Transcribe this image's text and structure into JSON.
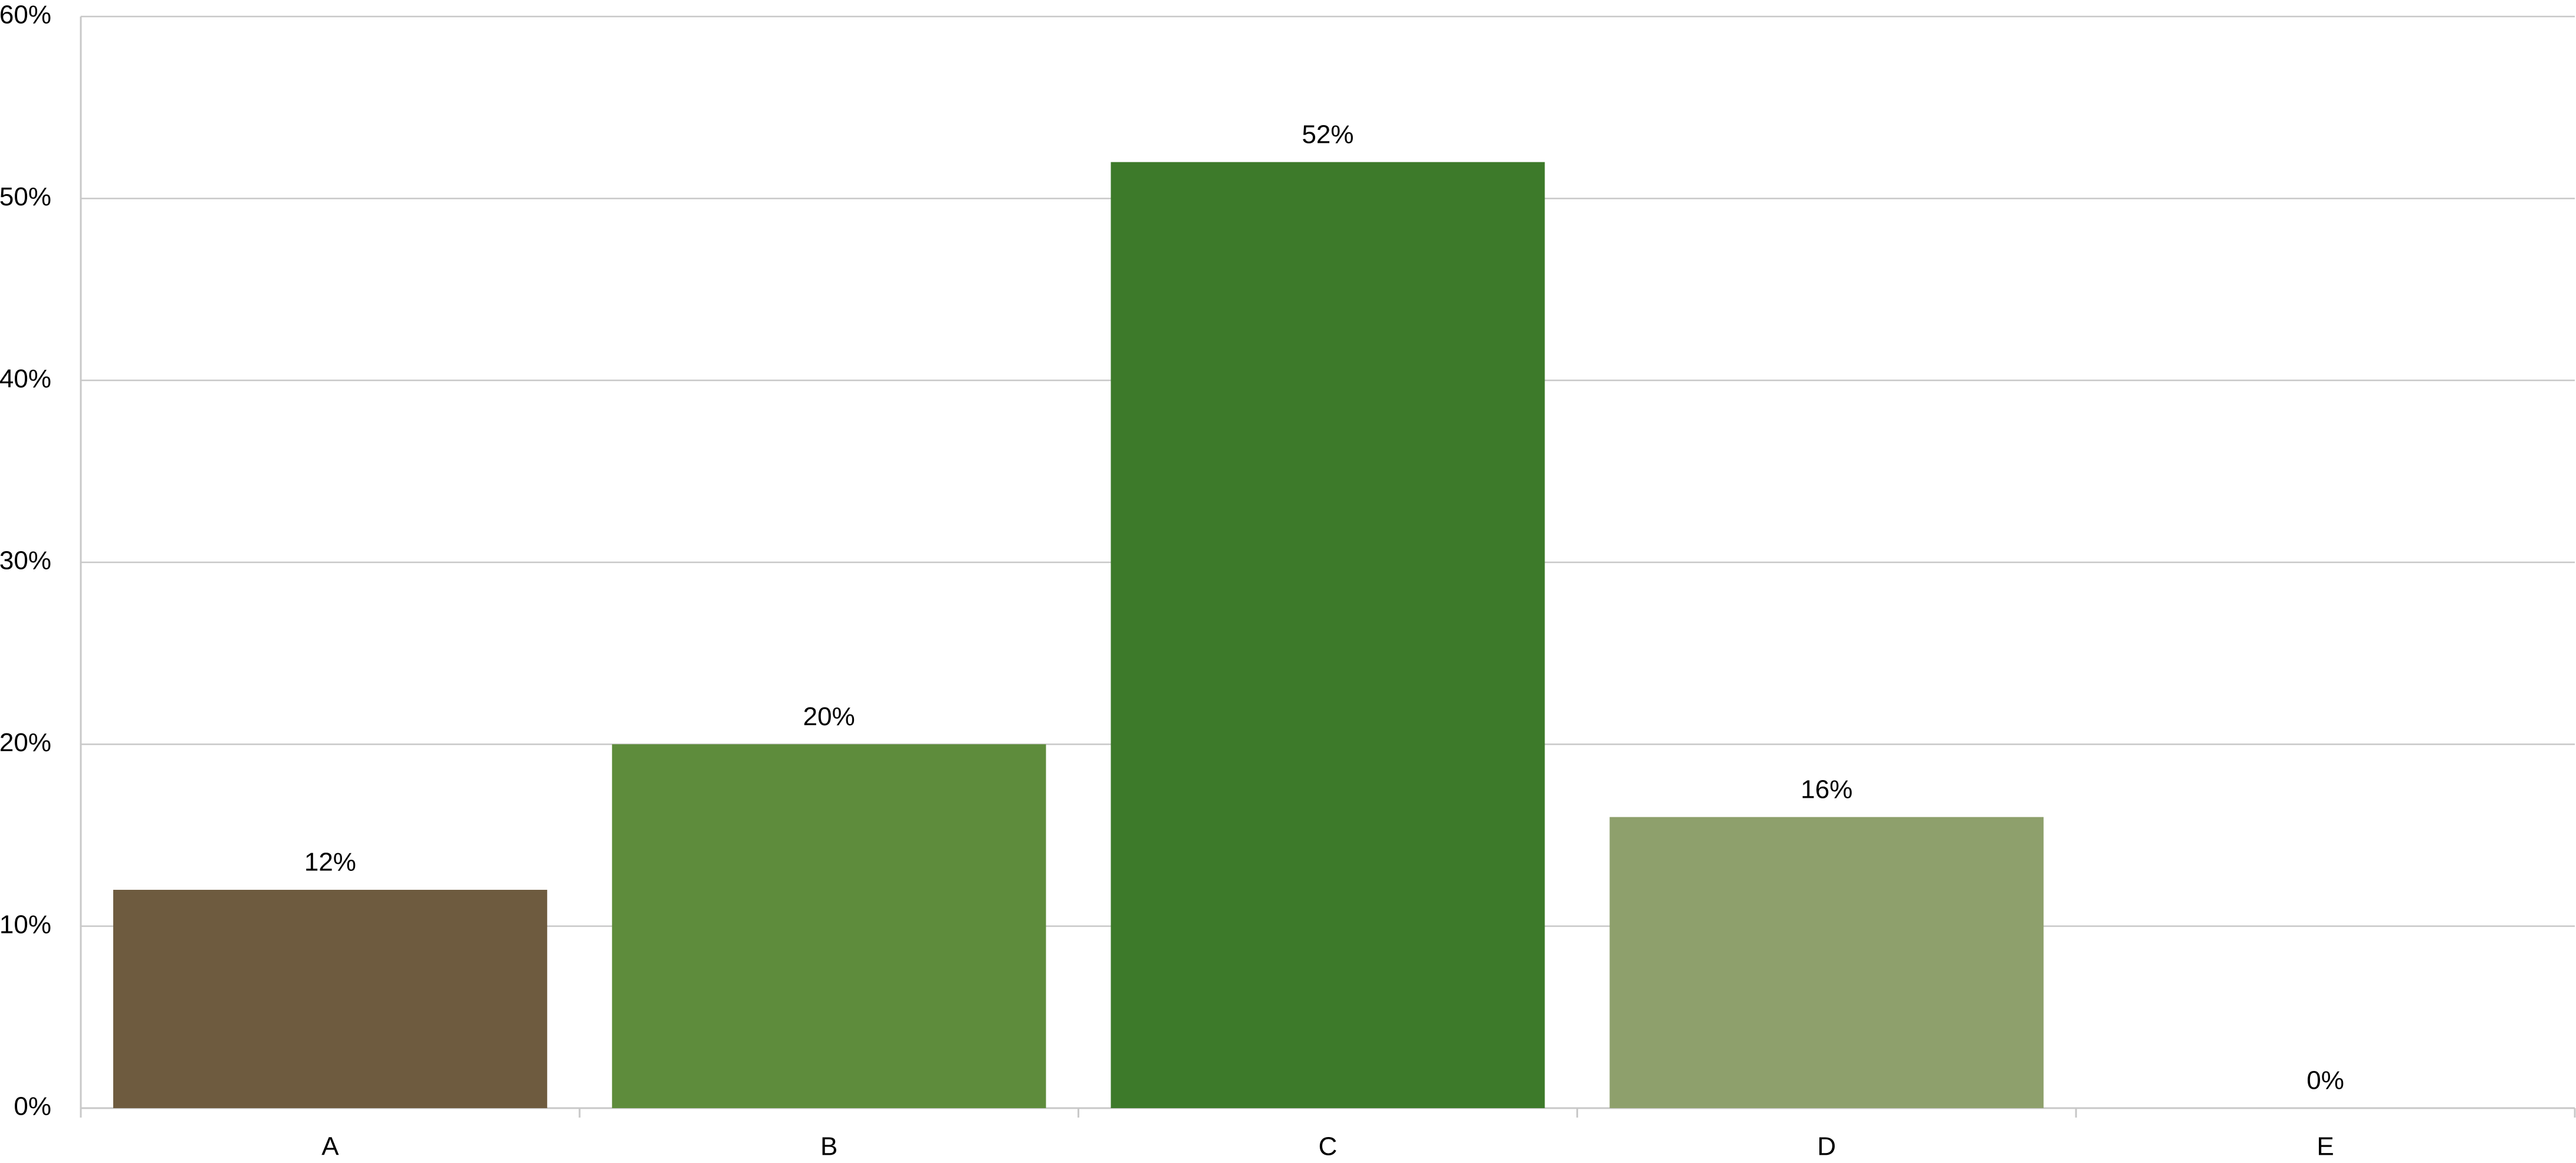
{
  "chart_data": {
    "type": "bar",
    "categories": [
      "A",
      "B",
      "C",
      "D",
      "E"
    ],
    "values": [
      12,
      20,
      52,
      16,
      0
    ],
    "value_labels": [
      "12%",
      "20%",
      "52%",
      "16%",
      "0%"
    ],
    "colors": [
      "#6e5b3f",
      "#5e8c3c",
      "#3d7a2a",
      "#8ea06c",
      "#9aa0a6"
    ],
    "ylim": [
      0,
      60
    ],
    "yticks": [
      {
        "value": 0,
        "label": "0%"
      },
      {
        "value": 10,
        "label": "10%"
      },
      {
        "value": 20,
        "label": "20%"
      },
      {
        "value": 30,
        "label": "30%"
      },
      {
        "value": 40,
        "label": "40%"
      },
      {
        "value": 50,
        "label": "50%"
      },
      {
        "value": 60,
        "label": "60%"
      }
    ],
    "grid": true
  }
}
